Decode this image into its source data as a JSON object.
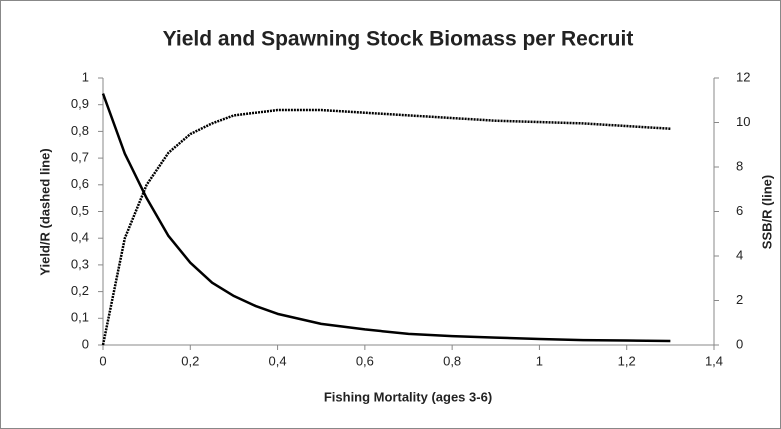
{
  "chart_data": {
    "type": "line",
    "title": "Yield and Spawning Stock Biomass per Recruit",
    "xlabel": "Fishing Mortality (ages 3-6)",
    "ylabel": "Yield/R (dashed line)",
    "y2label": "SSB/R (line)",
    "x": [
      0,
      0.05,
      0.1,
      0.15,
      0.2,
      0.25,
      0.3,
      0.35,
      0.4,
      0.5,
      0.6,
      0.7,
      0.8,
      0.9,
      1.0,
      1.1,
      1.2,
      1.3
    ],
    "series": [
      {
        "color": "#000000",
        "style": "dashed",
        "axis": "y",
        "values": [
          0,
          0.4,
          0.6,
          0.72,
          0.79,
          0.83,
          0.86,
          0.87,
          0.88,
          0.88,
          0.87,
          0.86,
          0.85,
          0.84,
          0.835,
          0.83,
          0.82,
          0.81
        ]
      },
      {
        "color": "#000000",
        "style": "solid",
        "axis": "y2",
        "values": [
          11.3,
          8.6,
          6.6,
          4.9,
          3.7,
          2.8,
          2.2,
          1.75,
          1.4,
          0.95,
          0.7,
          0.5,
          0.4,
          0.33,
          0.27,
          0.22,
          0.2,
          0.18
        ]
      }
    ],
    "xlim": [
      0,
      1.4
    ],
    "xticks": [
      0,
      {
        "value": 0.2,
        "label": "0,2"
      },
      {
        "value": 0.4,
        "label": "0,4"
      },
      {
        "value": 0.6,
        "label": "0,6"
      },
      {
        "value": 0.8,
        "label": "0,8"
      },
      1,
      {
        "value": 1.2,
        "label": "1,2"
      },
      {
        "value": 1.4,
        "label": "1,4"
      }
    ],
    "ylim": [
      0,
      1
    ],
    "yticks": [
      0,
      {
        "value": 0.1,
        "label": "0,1"
      },
      {
        "value": 0.2,
        "label": "0,2"
      },
      {
        "value": 0.3,
        "label": "0,3"
      },
      {
        "value": 0.4,
        "label": "0,4"
      },
      {
        "value": 0.5,
        "label": "0,5"
      },
      {
        "value": 0.6,
        "label": "0,6"
      },
      {
        "value": 0.7,
        "label": "0,7"
      },
      {
        "value": 0.8,
        "label": "0,8"
      },
      {
        "value": 0.9,
        "label": "0,9"
      },
      1
    ],
    "y2lim": [
      0,
      12
    ],
    "y2ticks": [
      0,
      2,
      4,
      6,
      8,
      10,
      12
    ],
    "grid": false
  }
}
